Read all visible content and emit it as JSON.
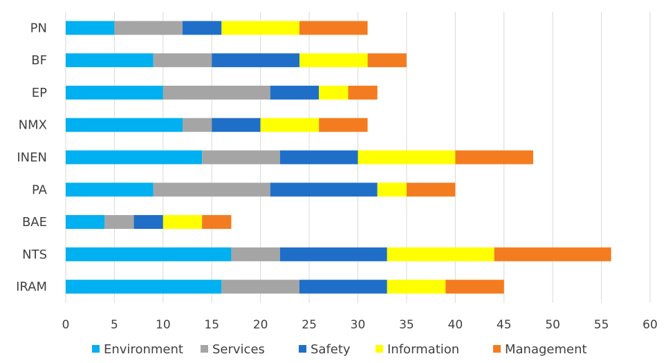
{
  "chart_data": {
    "type": "bar",
    "orientation": "horizontal",
    "stacked": true,
    "categories": [
      "PN",
      "BF",
      "EP",
      "NMX",
      "INEN",
      "PA",
      "BAE",
      "NTS",
      "IRAM"
    ],
    "series": [
      {
        "name": "Environment",
        "color": "#00b0f0",
        "values": [
          5,
          9,
          10,
          12,
          14,
          9,
          4,
          17,
          16
        ]
      },
      {
        "name": "Services",
        "color": "#a5a5a5",
        "values": [
          7,
          6,
          11,
          3,
          8,
          12,
          3,
          5,
          8
        ]
      },
      {
        "name": "Safety",
        "color": "#1f6fc8",
        "values": [
          4,
          9,
          5,
          5,
          8,
          11,
          3,
          11,
          9
        ]
      },
      {
        "name": "Information",
        "color": "#ffff00",
        "values": [
          8,
          7,
          3,
          6,
          10,
          3,
          4,
          11,
          6
        ]
      },
      {
        "name": "Management",
        "color": "#f47c20",
        "values": [
          7,
          4,
          3,
          5,
          8,
          5,
          3,
          12,
          6
        ]
      }
    ],
    "xlim": [
      0,
      60
    ],
    "xticks": [
      0,
      5,
      10,
      15,
      20,
      25,
      30,
      35,
      40,
      45,
      50,
      55,
      60
    ],
    "title": "",
    "xlabel": "",
    "ylabel": "",
    "grid": "vertical",
    "legend_position": "bottom"
  }
}
